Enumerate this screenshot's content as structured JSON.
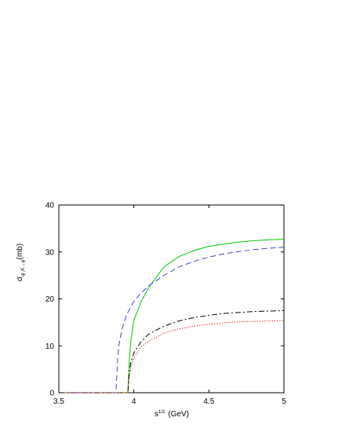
{
  "chart_data": {
    "type": "line",
    "xlabel": "s",
    "xlabel_sup": "1/2",
    "xlabel_unit": "(GeV)",
    "ylabel": "σ",
    "ylabel_sub": "ψ',K→ψ",
    "ylabel_unit": "(mb)",
    "xlim": [
      3.5,
      5
    ],
    "ylim": [
      0,
      40
    ],
    "xticks": [
      3.5,
      4,
      4.5,
      5
    ],
    "xtick_labels": [
      "3.5",
      "4",
      "4.5",
      "5"
    ],
    "yticks": [
      0,
      10,
      20,
      30,
      40
    ],
    "ytick_labels": [
      "0",
      "10",
      "20",
      "30",
      "40"
    ],
    "grid": false,
    "series": [
      {
        "color": "#00cc00",
        "style": "solid",
        "x": [
          3.5,
          3.96,
          3.97,
          3.98,
          4.0,
          4.05,
          4.1,
          4.2,
          4.3,
          4.4,
          4.5,
          4.6,
          4.7,
          4.8,
          4.9,
          5.0
        ],
        "y": [
          0,
          0,
          7,
          11,
          15.5,
          19.5,
          22.5,
          26.8,
          29.0,
          30.3,
          31.2,
          31.7,
          32.1,
          32.4,
          32.6,
          32.7
        ]
      },
      {
        "color": "#4040cc",
        "style": "dashed",
        "x": [
          3.5,
          3.88,
          3.89,
          3.9,
          3.92,
          3.95,
          4.0,
          4.05,
          4.1,
          4.2,
          4.3,
          4.4,
          4.5,
          4.6,
          4.7,
          4.8,
          4.9,
          5.0
        ],
        "y": [
          0,
          0,
          6,
          10,
          13.5,
          16.5,
          19.5,
          21.3,
          22.8,
          25.0,
          26.8,
          28.0,
          28.9,
          29.6,
          30.1,
          30.5,
          30.8,
          31.0
        ]
      },
      {
        "color": "#000000",
        "style": "dashdot",
        "x": [
          3.5,
          3.96,
          3.97,
          3.98,
          4.0,
          4.05,
          4.1,
          4.2,
          4.3,
          4.4,
          4.5,
          4.6,
          4.7,
          4.8,
          4.9,
          5.0
        ],
        "y": [
          0,
          0,
          4.5,
          6.5,
          8.5,
          11.0,
          12.5,
          14.2,
          15.3,
          16.0,
          16.5,
          16.9,
          17.1,
          17.3,
          17.4,
          17.5
        ]
      },
      {
        "color": "#dd0000",
        "style": "dotted",
        "x": [
          3.5,
          3.96,
          3.97,
          3.98,
          4.0,
          4.05,
          4.1,
          4.2,
          4.3,
          4.4,
          4.5,
          4.6,
          4.7,
          4.8,
          4.9,
          5.0
        ],
        "y": [
          0,
          0,
          3.5,
          5.5,
          7.5,
          9.8,
          11.0,
          12.7,
          13.6,
          14.2,
          14.6,
          14.9,
          15.1,
          15.2,
          15.3,
          15.4
        ]
      }
    ]
  }
}
